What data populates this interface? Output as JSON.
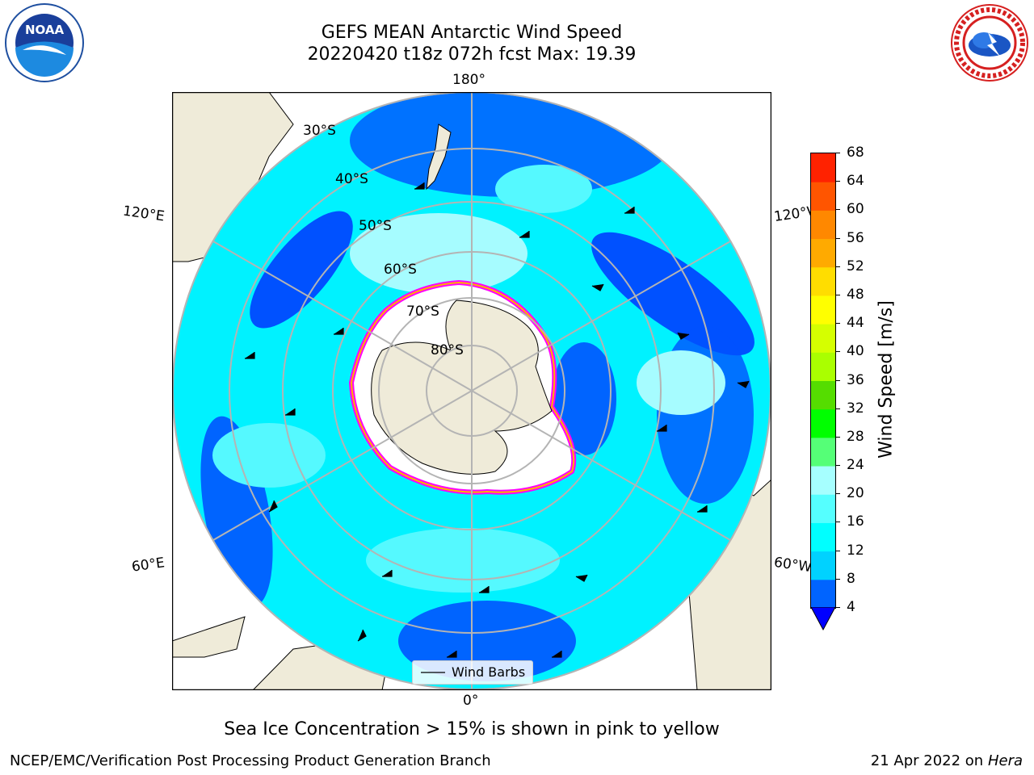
{
  "header": {
    "title": "GEFS MEAN Antarctic Wind Speed",
    "subtitle": "20220420 t18z 072h fcst   Max: 19.39"
  },
  "logos": {
    "left": {
      "icon": "noaa-logo",
      "text": "NOAA"
    },
    "right": {
      "icon": "nws-logo",
      "text": "NATIONAL WEATHER SERVICE"
    }
  },
  "map": {
    "projection": "south-polar-stereographic",
    "longitude_labels": [
      "180°",
      "120°E",
      "120°W",
      "60°E",
      "60°W",
      "0°"
    ],
    "latitude_labels": [
      "30°S",
      "40°S",
      "50°S",
      "60°S",
      "70°S",
      "80°S"
    ],
    "legend_label": "Wind Barbs",
    "colors": {
      "land": "#efebd9",
      "ice": "#ffffff",
      "ocean_fill_low": "#0051ff",
      "ocean_fill_mid": "#00f2ff",
      "ocean_fill_high": "#a6fcff",
      "ice_edge": [
        "#ff00ff",
        "#ffb000",
        "#fff000"
      ]
    }
  },
  "colorbar": {
    "label": "Wind Speed [m/s]",
    "ticks": [
      "4",
      "8",
      "12",
      "16",
      "20",
      "24",
      "28",
      "32",
      "36",
      "40",
      "44",
      "48",
      "52",
      "56",
      "60",
      "64",
      "68"
    ],
    "colors": [
      "#0000ff",
      "#0064ff",
      "#00d2ff",
      "#00ffff",
      "#55ffff",
      "#a6ffff",
      "#55ff77",
      "#00ff00",
      "#55dd00",
      "#aaff00",
      "#d5ff00",
      "#ffff00",
      "#ffdd00",
      "#ffaa00",
      "#ff8800",
      "#ff5500",
      "#ff2200",
      "#ff0000"
    ]
  },
  "caption": "Sea Ice Concentration > 15% is shown in pink to yellow",
  "footer": {
    "left": "NCEP/EMC/Verification Post Processing Product Generation Branch",
    "right_prefix": "21 Apr 2022 on ",
    "right_host": "Hera"
  }
}
